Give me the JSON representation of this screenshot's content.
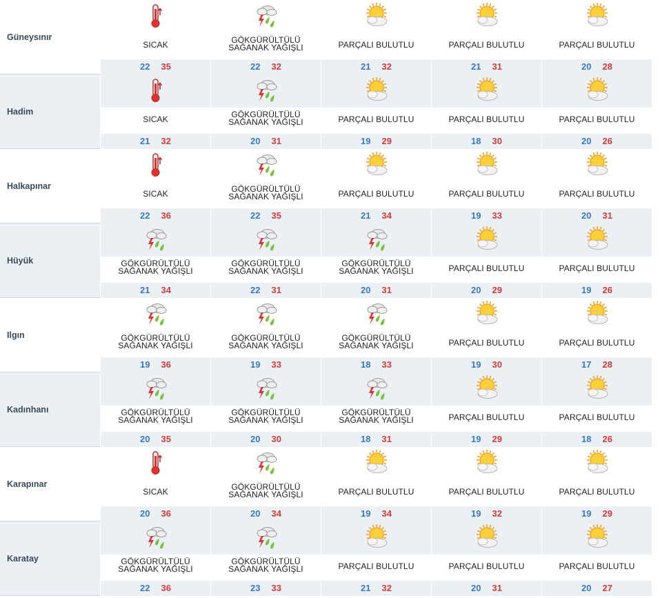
{
  "colors": {
    "shade_band": "#ebf0f4",
    "city_cell_shaded": "#ebf0f4",
    "min_temp": "#3b78c2",
    "max_temp": "#d23a3a"
  },
  "rows": [
    {
      "city": "Güneysınır",
      "days": [
        {
          "icon": "thermometer-hot-icon",
          "desc": [
            "SICAK"
          ],
          "min": "22",
          "max": "35"
        },
        {
          "icon": "thunderstorm-rain-icon",
          "desc": [
            "GÖKGÜRÜLTÜLÜ",
            "SAĞANAK YAĞIŞLI"
          ],
          "min": "22",
          "max": "32"
        },
        {
          "icon": "partly-cloudy-icon",
          "desc": [
            "PARÇALI BULUTLU"
          ],
          "min": "21",
          "max": "32"
        },
        {
          "icon": "partly-cloudy-icon",
          "desc": [
            "PARÇALI BULUTLU"
          ],
          "min": "21",
          "max": "31"
        },
        {
          "icon": "partly-cloudy-icon",
          "desc": [
            "PARÇALI BULUTLU"
          ],
          "min": "20",
          "max": "28"
        }
      ]
    },
    {
      "city": "Hadim",
      "days": [
        {
          "icon": "thermometer-hot-icon",
          "desc": [
            "SICAK"
          ],
          "min": "21",
          "max": "32"
        },
        {
          "icon": "thunderstorm-rain-icon",
          "desc": [
            "GÖKGÜRÜLTÜLÜ",
            "SAĞANAK YAĞIŞLI"
          ],
          "min": "20",
          "max": "31"
        },
        {
          "icon": "partly-cloudy-icon",
          "desc": [
            "PARÇALI BULUTLU"
          ],
          "min": "19",
          "max": "29"
        },
        {
          "icon": "partly-cloudy-icon",
          "desc": [
            "PARÇALI BULUTLU"
          ],
          "min": "18",
          "max": "30"
        },
        {
          "icon": "partly-cloudy-icon",
          "desc": [
            "PARÇALI BULUTLU"
          ],
          "min": "20",
          "max": "26"
        }
      ]
    },
    {
      "city": "Halkapınar",
      "days": [
        {
          "icon": "thermometer-hot-icon",
          "desc": [
            "SICAK"
          ],
          "min": "22",
          "max": "36"
        },
        {
          "icon": "thunderstorm-rain-icon",
          "desc": [
            "GÖKGÜRÜLTÜLÜ",
            "SAĞANAK YAĞIŞLI"
          ],
          "min": "22",
          "max": "35"
        },
        {
          "icon": "partly-cloudy-icon",
          "desc": [
            "PARÇALI BULUTLU"
          ],
          "min": "21",
          "max": "34"
        },
        {
          "icon": "partly-cloudy-icon",
          "desc": [
            "PARÇALI BULUTLU"
          ],
          "min": "19",
          "max": "33"
        },
        {
          "icon": "partly-cloudy-icon",
          "desc": [
            "PARÇALI BULUTLU"
          ],
          "min": "20",
          "max": "31"
        }
      ]
    },
    {
      "city": "Hüyük",
      "days": [
        {
          "icon": "thunderstorm-rain-icon",
          "desc": [
            "GÖKGÜRÜLTÜLÜ",
            "SAĞANAK YAĞIŞLI"
          ],
          "min": "21",
          "max": "34"
        },
        {
          "icon": "thunderstorm-rain-icon",
          "desc": [
            "GÖKGÜRÜLTÜLÜ",
            "SAĞANAK YAĞIŞLI"
          ],
          "min": "22",
          "max": "31"
        },
        {
          "icon": "thunderstorm-rain-icon",
          "desc": [
            "GÖKGÜRÜLTÜLÜ",
            "SAĞANAK YAĞIŞLI"
          ],
          "min": "20",
          "max": "31"
        },
        {
          "icon": "partly-cloudy-icon",
          "desc": [
            "PARÇALI BULUTLU"
          ],
          "min": "20",
          "max": "29"
        },
        {
          "icon": "partly-cloudy-icon",
          "desc": [
            "PARÇALI BULUTLU"
          ],
          "min": "19",
          "max": "26"
        }
      ]
    },
    {
      "city": "Ilgın",
      "days": [
        {
          "icon": "thunderstorm-rain-icon",
          "desc": [
            "GÖKGÜRÜLTÜLÜ",
            "SAĞANAK YAĞIŞLI"
          ],
          "min": "19",
          "max": "36"
        },
        {
          "icon": "thunderstorm-rain-icon",
          "desc": [
            "GÖKGÜRÜLTÜLÜ",
            "SAĞANAK YAĞIŞLI"
          ],
          "min": "19",
          "max": "33"
        },
        {
          "icon": "thunderstorm-rain-icon",
          "desc": [
            "GÖKGÜRÜLTÜLÜ",
            "SAĞANAK YAĞIŞLI"
          ],
          "min": "18",
          "max": "33"
        },
        {
          "icon": "partly-cloudy-icon",
          "desc": [
            "PARÇALI BULUTLU"
          ],
          "min": "19",
          "max": "30"
        },
        {
          "icon": "partly-cloudy-icon",
          "desc": [
            "PARÇALI BULUTLU"
          ],
          "min": "17",
          "max": "28"
        }
      ]
    },
    {
      "city": "Kadınhanı",
      "days": [
        {
          "icon": "thunderstorm-rain-icon",
          "desc": [
            "GÖKGÜRÜLTÜLÜ",
            "SAĞANAK YAĞIŞLI"
          ],
          "min": "20",
          "max": "35"
        },
        {
          "icon": "thunderstorm-rain-icon",
          "desc": [
            "GÖKGÜRÜLTÜLÜ",
            "SAĞANAK YAĞIŞLI"
          ],
          "min": "20",
          "max": "30"
        },
        {
          "icon": "thunderstorm-rain-icon",
          "desc": [
            "GÖKGÜRÜLTÜLÜ",
            "SAĞANAK YAĞIŞLI"
          ],
          "min": "18",
          "max": "31"
        },
        {
          "icon": "partly-cloudy-icon",
          "desc": [
            "PARÇALI BULUTLU"
          ],
          "min": "19",
          "max": "29"
        },
        {
          "icon": "partly-cloudy-icon",
          "desc": [
            "PARÇALI BULUTLU"
          ],
          "min": "18",
          "max": "26"
        }
      ]
    },
    {
      "city": "Karapınar",
      "days": [
        {
          "icon": "thermometer-hot-icon",
          "desc": [
            "SICAK"
          ],
          "min": "20",
          "max": "36"
        },
        {
          "icon": "thunderstorm-rain-icon",
          "desc": [
            "GÖKGÜRÜLTÜLÜ",
            "SAĞANAK YAĞIŞLI"
          ],
          "min": "20",
          "max": "34"
        },
        {
          "icon": "partly-cloudy-icon",
          "desc": [
            "PARÇALI BULUTLU"
          ],
          "min": "19",
          "max": "34"
        },
        {
          "icon": "partly-cloudy-icon",
          "desc": [
            "PARÇALI BULUTLU"
          ],
          "min": "19",
          "max": "32"
        },
        {
          "icon": "partly-cloudy-icon",
          "desc": [
            "PARÇALI BULUTLU"
          ],
          "min": "19",
          "max": "29"
        }
      ]
    },
    {
      "city": "Karatay",
      "days": [
        {
          "icon": "thunderstorm-rain-icon",
          "desc": [
            "GÖKGÜRÜLTÜLÜ",
            "SAĞANAK YAĞIŞLI"
          ],
          "min": "22",
          "max": "36"
        },
        {
          "icon": "thunderstorm-rain-icon",
          "desc": [
            "GÖKGÜRÜLTÜLÜ",
            "SAĞANAK YAĞIŞLI"
          ],
          "min": "23",
          "max": "33"
        },
        {
          "icon": "partly-cloudy-icon",
          "desc": [
            "PARÇALI BULUTLU"
          ],
          "min": "21",
          "max": "32"
        },
        {
          "icon": "partly-cloudy-icon",
          "desc": [
            "PARÇALI BULUTLU"
          ],
          "min": "20",
          "max": "31"
        },
        {
          "icon": "partly-cloudy-icon",
          "desc": [
            "PARÇALI BULUTLU"
          ],
          "min": "20",
          "max": "27"
        }
      ]
    }
  ]
}
